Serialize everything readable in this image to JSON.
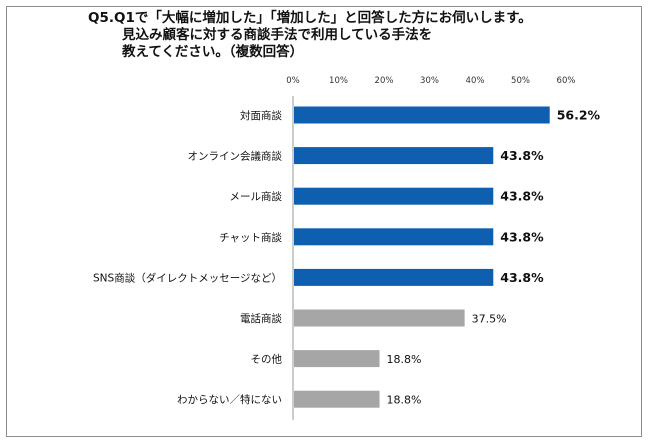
{
  "title_lines": [
    "Q5.Q1で「大幅に増加した」「増加した」と回答した方にお伺いします。",
    "見込み顧客に対する商談手法で利用している手法を",
    "教えてください。（複数回答）"
  ],
  "colors": {
    "highlight": "#0f5fb0",
    "normal": "#a6a6a6",
    "axis": "#9a9a9a",
    "border": "#8c8c8c"
  },
  "chart_data": {
    "type": "bar",
    "orientation": "horizontal",
    "title": "Q5.Q1で「大幅に増加した」「増加した」と回答した方にお伺いします。見込み顧客に対する商談手法で利用している手法を教えてください。（複数回答）",
    "xlim": [
      0,
      60
    ],
    "ticks": [
      "0%",
      "10%",
      "20%",
      "30%",
      "40%",
      "50%",
      "60%"
    ],
    "tick_values": [
      0,
      10,
      20,
      30,
      40,
      50,
      60
    ],
    "grid": false,
    "categories": [
      "対面商談",
      "オンライン会議商談",
      "メール商談",
      "チャット商談",
      "SNS商談（ダイレクトメッセージなど）",
      "電話商談",
      "その他",
      "わからない／特にない"
    ],
    "values": [
      56.2,
      43.8,
      43.8,
      43.8,
      43.8,
      37.5,
      18.8,
      18.8
    ],
    "labels": [
      "56.2%",
      "43.8%",
      "43.8%",
      "43.8%",
      "43.8%",
      "37.5%",
      "18.8%",
      "18.8%"
    ],
    "highlighted": [
      true,
      true,
      true,
      true,
      true,
      false,
      false,
      false
    ]
  }
}
